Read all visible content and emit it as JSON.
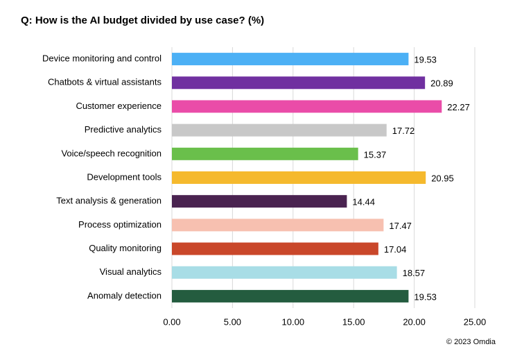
{
  "chart_data": {
    "type": "bar",
    "orientation": "horizontal",
    "title": "Q: How is the AI budget divided by use case? (%)",
    "categories": [
      "Device monitoring and control",
      "Chatbots & virtual assistants",
      "Customer experience",
      "Predictive analytics",
      "Voice/speech recognition",
      "Development tools",
      "Text analysis & generation",
      "Process optimization",
      "Quality monitoring",
      "Visual analytics",
      "Anomaly detection"
    ],
    "values": [
      19.53,
      20.89,
      22.27,
      17.72,
      15.37,
      20.95,
      14.44,
      17.47,
      17.04,
      18.57,
      19.53
    ],
    "colors": [
      "#4cb0f5",
      "#7030a0",
      "#ea4ca8",
      "#c8c8c8",
      "#6abf4b",
      "#f5b92d",
      "#4a2350",
      "#f7c0b0",
      "#c9472a",
      "#a8dde6",
      "#245c3f"
    ],
    "xlim": [
      0,
      25
    ],
    "xticks": [
      {
        "value": 0,
        "label": "0.00"
      },
      {
        "value": 5,
        "label": "5.00"
      },
      {
        "value": 10,
        "label": "10.00"
      },
      {
        "value": 15,
        "label": "15.00"
      },
      {
        "value": 20,
        "label": "20.00"
      },
      {
        "value": 25,
        "label": "25.00"
      }
    ],
    "grid": true,
    "footer": "© 2023 Omdia"
  }
}
